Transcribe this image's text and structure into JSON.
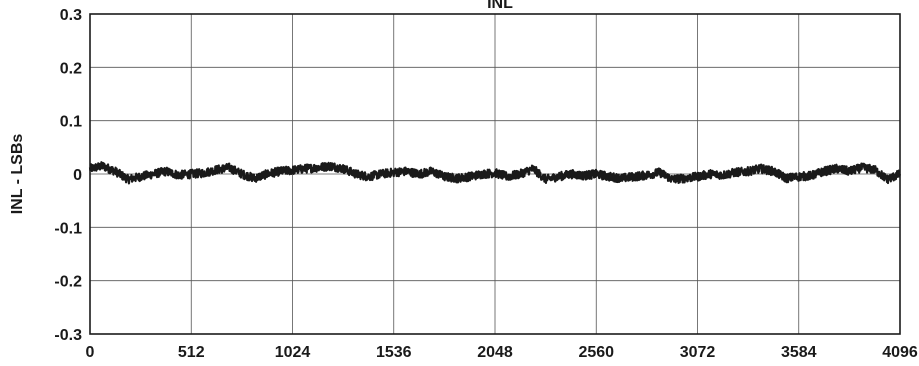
{
  "chart_data": {
    "type": "line",
    "title": "INL",
    "xlabel": "",
    "ylabel": "INL - LSBs",
    "xlim": [
      0,
      4096
    ],
    "ylim": [
      -0.3,
      0.3
    ],
    "x_ticks": [
      0,
      512,
      1024,
      1536,
      2048,
      2560,
      3072,
      3584,
      4096
    ],
    "x_tick_labels": [
      "0",
      "512",
      "1024",
      "1536",
      "2048",
      "2560",
      "3072",
      "3584",
      "4096"
    ],
    "y_ticks": [
      0.3,
      0.2,
      0.1,
      0,
      -0.1,
      -0.2,
      -0.3
    ],
    "y_tick_labels": [
      "0.3",
      "0.2",
      "0.1",
      "0",
      "-0.1",
      "-0.2",
      "-0.3"
    ],
    "grid": true,
    "legend": false,
    "series": [
      {
        "color": "#1a1a1a",
        "x": [
          0,
          64,
          128,
          192,
          256,
          320,
          384,
          448,
          512,
          576,
          640,
          704,
          768,
          832,
          896,
          960,
          1024,
          1088,
          1152,
          1216,
          1280,
          1344,
          1408,
          1472,
          1536,
          1600,
          1664,
          1728,
          1792,
          1856,
          1920,
          1984,
          2048,
          2112,
          2176,
          2240,
          2304,
          2368,
          2432,
          2496,
          2560,
          2624,
          2688,
          2752,
          2816,
          2880,
          2944,
          3008,
          3072,
          3136,
          3200,
          3264,
          3328,
          3392,
          3456,
          3520,
          3584,
          3648,
          3712,
          3776,
          3840,
          3904,
          3968,
          4032,
          4096
        ],
        "y": [
          0.01,
          0.015,
          0.005,
          -0.01,
          -0.005,
          0.0,
          0.005,
          -0.002,
          0.0,
          0.002,
          0.008,
          0.012,
          0.0,
          -0.008,
          0.0,
          0.005,
          0.007,
          0.01,
          0.012,
          0.015,
          0.01,
          0.0,
          -0.005,
          0.0,
          0.003,
          0.005,
          0.0,
          0.005,
          -0.005,
          -0.008,
          -0.005,
          0.0,
          0.002,
          -0.005,
          0.0,
          0.01,
          -0.01,
          -0.005,
          0.0,
          -0.003,
          0.0,
          -0.005,
          -0.008,
          -0.005,
          -0.002,
          0.003,
          -0.01,
          -0.008,
          -0.005,
          0.0,
          -0.002,
          0.003,
          0.005,
          0.01,
          0.005,
          -0.008,
          -0.005,
          -0.003,
          0.005,
          0.01,
          0.005,
          0.012,
          0.008,
          -0.01,
          0.0
        ]
      }
    ]
  }
}
